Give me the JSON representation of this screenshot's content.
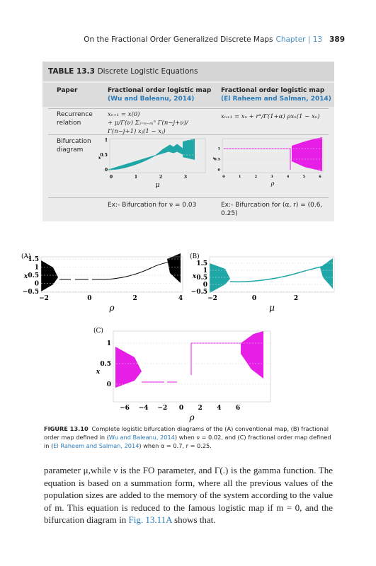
{
  "header": {
    "title": "On the Fractional Order Generalized Discrete Maps",
    "chapter": "Chapter | 13",
    "page": "389"
  },
  "table": {
    "label": "TABLE 13.3",
    "title": "Discrete Logistic Equations",
    "columns": [
      "Paper",
      "Fractional order logistic map",
      "Fractional order logistic map"
    ],
    "column_refs": [
      "(Wu and Baleanu, 2014)",
      "(El Raheem and Salman, 2014)"
    ],
    "recurrence": {
      "label": "Recurrence relation",
      "eq1_line1": "xₙ₊₁ = x(0)",
      "eq1_line2": "+ μ/Γ(ν) Σⱼ₌ₙ₋ₘⁿ Γ(n−j+ν)/Γ(n−j+1) xⱼ(1 − xⱼ)",
      "eq2": "xₙ₊₁ = xₙ + rᵅ/Γ(1+α) ρxₙ(1 − xₙ)"
    },
    "bifurcation": {
      "label": "Bifurcation diagram",
      "chart1": {
        "yticks": [
          "1",
          "0.5",
          "0"
        ],
        "xticks": [
          "0",
          "1",
          "2",
          "3"
        ],
        "xlabel": "μ",
        "ylabel": "x"
      },
      "chart2": {
        "yticks": [
          "1",
          "0.5",
          "0"
        ],
        "xticks": [
          "0",
          "1",
          "2",
          "3",
          "4",
          "5",
          "6"
        ],
        "xlabel": "ρ",
        "ylabel": "x"
      }
    },
    "notes": [
      "Ex:- Bifurcation for ν = 0.03",
      "Ex:- Bifurcation for (α, r) = (0.6, 0.25)"
    ]
  },
  "figure": {
    "panels": [
      {
        "label": "(A)",
        "yticks": [
          "1.5",
          "1",
          "0.5",
          "0",
          "−0.5"
        ],
        "xticks": [
          "−2",
          "0",
          "2",
          "4"
        ],
        "xlabel": "ρ",
        "ylabel": "x"
      },
      {
        "label": "(B)",
        "yticks": [
          "1.5",
          "1",
          "0.5",
          "0",
          "−0.5"
        ],
        "xticks": [
          "−2",
          "0",
          "2"
        ],
        "xlabel": "μ",
        "ylabel": "x"
      },
      {
        "label": "(C)",
        "yticks": [
          "1",
          "0.5",
          "0"
        ],
        "xticks": [
          "−6",
          "−4",
          "−2",
          "0",
          "2",
          "4",
          "6"
        ],
        "xlabel": "ρ",
        "ylabel": "x"
      }
    ],
    "caption_label": "FIGURE 13.10",
    "caption_parts": [
      "Complete logistic bifurcation diagrams of the (A) conventional map, (B) fractional order map defined in (",
      "Wu and Baleanu, 2014",
      ") when ν = 0.02, and (C) fractional order map defined in (",
      "El Raheem and Salman, 2014",
      ") when α = 0.7, r = 0.25."
    ]
  },
  "body_parts": [
    "parameter μ,while ν is the FO parameter, and Γ(.) is the gamma function. The equation is based on a summation form, where all the previous values of the population sizes are added to the memory of the system according to the value of m. This equation is reduced to the famous logistic map if m = 0, and the bifurcation diagram in ",
    "Fig. 13.11A",
    " shows that."
  ]
}
